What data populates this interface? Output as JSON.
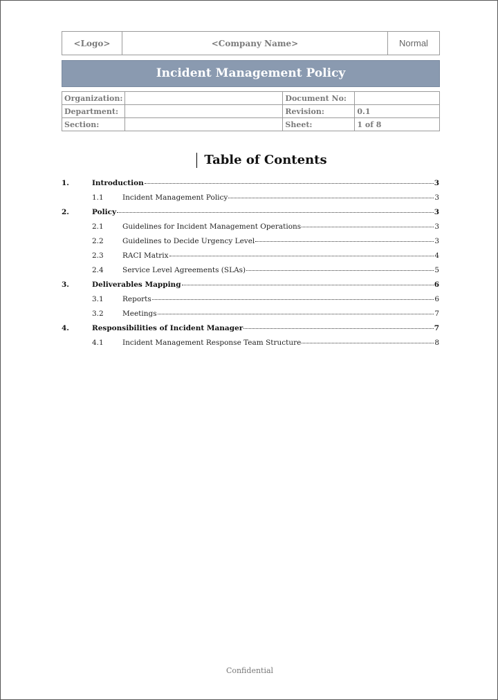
{
  "header": {
    "logo": "<Logo>",
    "company": "<Company Name>",
    "classification": "Normal"
  },
  "title": "Incident Management Policy",
  "info": [
    {
      "label": "Organization:",
      "value": "",
      "label2": "Document No:",
      "value2": ""
    },
    {
      "label": "Department:",
      "value": "",
      "label2": "Revision:",
      "value2": "0.1"
    },
    {
      "label": "Section:",
      "value": "",
      "label2": "Sheet:",
      "value2": "1 of 8"
    }
  ],
  "toc_title": "Table of Contents",
  "toc": [
    {
      "num": "1.",
      "text": "Introduction",
      "page": "3",
      "level": 1
    },
    {
      "num": "1.1",
      "text": "Incident Management Policy",
      "page": "3",
      "level": 2
    },
    {
      "num": "2.",
      "text": "Policy",
      "page": "3",
      "level": 1
    },
    {
      "num": "2.1",
      "text": "Guidelines for Incident Management Operations",
      "page": "3",
      "level": 2
    },
    {
      "num": "2.2",
      "text": "Guidelines to Decide Urgency Level",
      "page": "3",
      "level": 2
    },
    {
      "num": "2.3",
      "text": "RACI Matrix",
      "page": "4",
      "level": 2
    },
    {
      "num": "2.4",
      "text": "Service Level Agreements (SLAs)",
      "page": "5",
      "level": 2
    },
    {
      "num": "3.",
      "text": "Deliverables Mapping",
      "page": "6",
      "level": 1
    },
    {
      "num": "3.1",
      "text": "Reports",
      "page": "6",
      "level": 2
    },
    {
      "num": "3.2",
      "text": "Meetings",
      "page": "7",
      "level": 2
    },
    {
      "num": "4.",
      "text": "Responsibilities of Incident Manager",
      "page": "7",
      "level": 1
    },
    {
      "num": "4.1",
      "text": "Incident Management Response Team Structure",
      "page": "8",
      "level": 2
    }
  ],
  "footer": "Confidential"
}
